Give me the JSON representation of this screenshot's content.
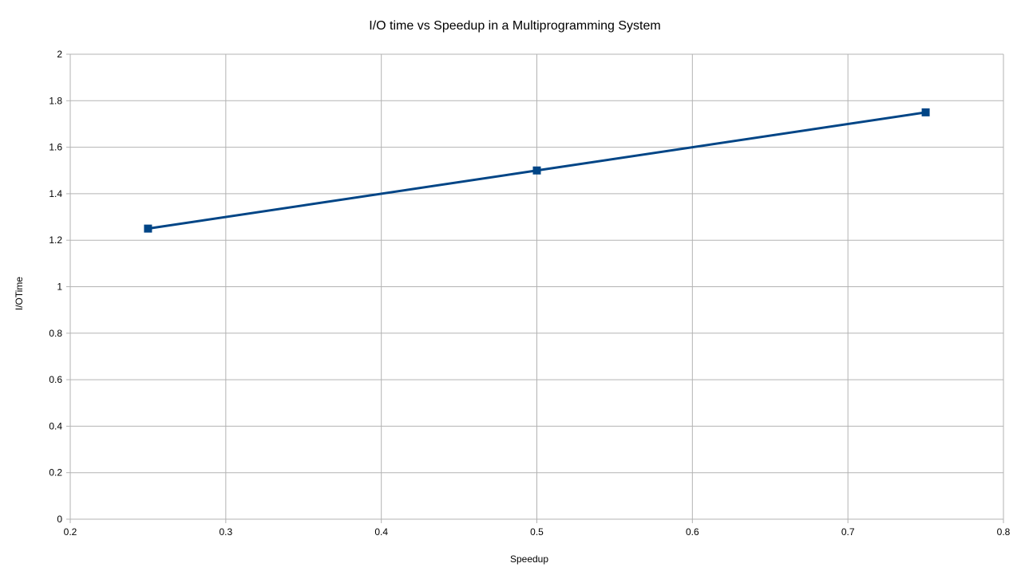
{
  "chart_data": {
    "type": "line",
    "title": "I/O time vs Speedup in a Multiprogramming System",
    "xlabel": "Speedup",
    "ylabel": "I/OTime",
    "xlim": [
      0.2,
      0.8
    ],
    "ylim": [
      0,
      2
    ],
    "x_ticks": [
      0.2,
      0.3,
      0.4,
      0.5,
      0.6,
      0.7,
      0.8
    ],
    "y_ticks": [
      0,
      0.2,
      0.4,
      0.6,
      0.8,
      1,
      1.2,
      1.4,
      1.6,
      1.8,
      2
    ],
    "grid": true,
    "legend": "none",
    "series": [
      {
        "color": "#004586",
        "marker": "square",
        "x": [
          0.25,
          0.5,
          0.75
        ],
        "y": [
          1.25,
          1.5,
          1.75
        ]
      }
    ]
  },
  "colors": {
    "grid": "#b3b3b3",
    "axis": "#b3b3b3",
    "series": "#004586"
  }
}
